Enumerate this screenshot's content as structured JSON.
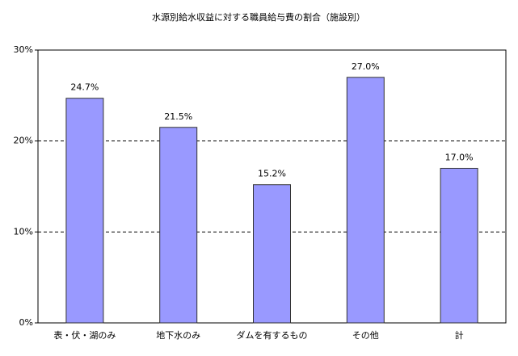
{
  "chart_data": {
    "type": "bar",
    "title": "水源別給水収益に対する職員給与費の割合（施設別）",
    "categories": [
      "表・伏・湖のみ",
      "地下水のみ",
      "ダムを有するもの",
      "その他",
      "計"
    ],
    "values": [
      24.7,
      21.5,
      15.2,
      27.0,
      17.0
    ],
    "value_labels": [
      "24.7%",
      "21.5%",
      "15.2%",
      "27.0%",
      "17.0%"
    ],
    "color": "#9999ff",
    "ylim": [
      0,
      30
    ],
    "yticks": [
      {
        "value": 0,
        "label": "0%"
      },
      {
        "value": 10,
        "label": "10%"
      },
      {
        "value": 20,
        "label": "20%"
      },
      {
        "value": 30,
        "label": "30%"
      }
    ],
    "grid": true
  }
}
